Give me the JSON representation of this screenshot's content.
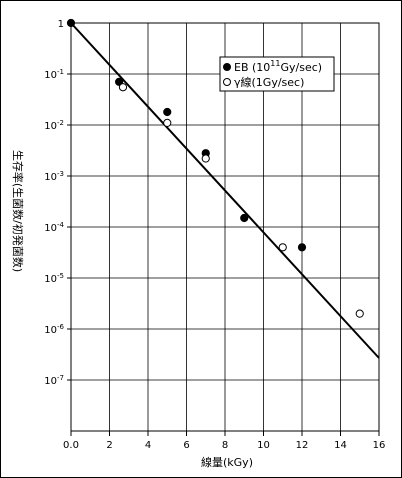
{
  "chart_data": {
    "type": "scatter",
    "title": "",
    "xlabel": "線量(kGy)",
    "ylabel": "生存率(生菌数/初発菌数)",
    "x_ticks": [
      "0.0",
      "2",
      "4",
      "6",
      "8",
      "10",
      "12",
      "14",
      "16"
    ],
    "xlim": [
      0,
      16
    ],
    "y_scale": "log",
    "y_ticks": [
      {
        "base": "1",
        "exp": ""
      },
      {
        "base": "10",
        "exp": "-1"
      },
      {
        "base": "10",
        "exp": "-2"
      },
      {
        "base": "10",
        "exp": "-3"
      },
      {
        "base": "10",
        "exp": "-4"
      },
      {
        "base": "10",
        "exp": "-5"
      },
      {
        "base": "10",
        "exp": "-6"
      },
      {
        "base": "10",
        "exp": "-7"
      }
    ],
    "ylim_log10": [
      -8,
      0
    ],
    "grid": true,
    "legend_position": "top-right",
    "series": [
      {
        "name_prefix": "EB (10",
        "name_exp": "11",
        "name_suffix": "Gy/sec)",
        "marker": "filled-circle",
        "x": [
          0.0,
          2.5,
          5.0,
          7.0,
          9.0,
          12.0
        ],
        "y": [
          1.0,
          0.07,
          0.018,
          0.0028,
          0.00015,
          4e-05
        ]
      },
      {
        "name_prefix": "γ線(1Gy/sec)",
        "name_exp": "",
        "name_suffix": "",
        "marker": "open-circle",
        "x": [
          2.7,
          5.0,
          7.0,
          11.0,
          15.0
        ],
        "y": [
          0.055,
          0.011,
          0.0022,
          4e-05,
          2e-06
        ]
      }
    ],
    "fit_line": {
      "x": [
        0.0,
        16.0
      ],
      "y": [
        1.0,
        2.7e-07
      ]
    }
  }
}
